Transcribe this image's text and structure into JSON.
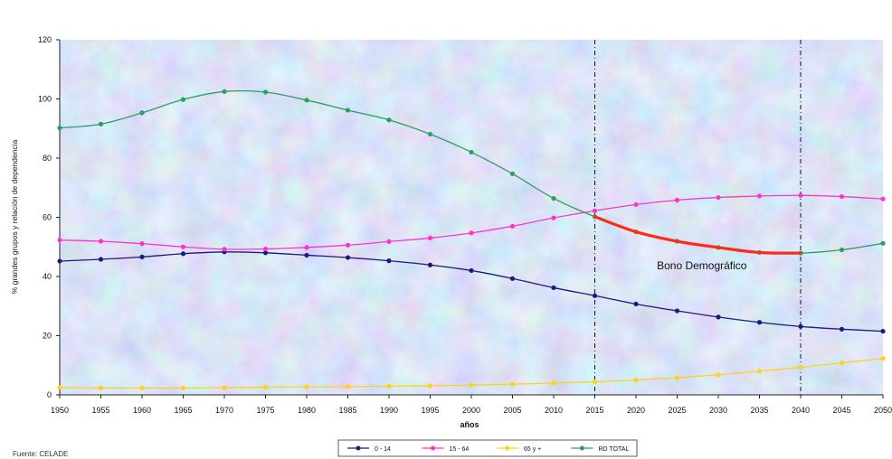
{
  "chart_data": {
    "type": "line",
    "title": "",
    "xlabel": "años",
    "ylabel": "% grandes grupos y relación de dependencia",
    "ylim": [
      0,
      120
    ],
    "yticks": [
      0,
      20,
      40,
      60,
      80,
      100,
      120
    ],
    "x": [
      1950,
      1955,
      1960,
      1965,
      1970,
      1975,
      1980,
      1985,
      1990,
      1995,
      2000,
      2005,
      2010,
      2015,
      2020,
      2025,
      2030,
      2035,
      2040,
      2045,
      2050
    ],
    "x_tick_labels": [
      "1950",
      "1955",
      "1960",
      "1965",
      "1970",
      "1975",
      "1980",
      "1985",
      "1990",
      "1995",
      "2000",
      "2005",
      "2010",
      "2015",
      "2020",
      "2025",
      "2030",
      "2035",
      "2040",
      "2045",
      "2050"
    ],
    "series": [
      {
        "name": "0 - 14",
        "color": "#1a1a80",
        "values": [
          45.2,
          45.8,
          46.6,
          47.7,
          48.3,
          48.0,
          47.2,
          46.4,
          45.3,
          43.9,
          42.0,
          39.3,
          36.2,
          33.5,
          30.7,
          28.4,
          26.3,
          24.5,
          23.1,
          22.2,
          21.5
        ]
      },
      {
        "name": "15 - 64",
        "color": "#ff33cc",
        "values": [
          52.3,
          51.9,
          51.1,
          50.0,
          49.2,
          49.3,
          49.8,
          50.6,
          51.8,
          53.0,
          54.7,
          57.0,
          59.8,
          62.2,
          64.3,
          65.8,
          66.7,
          67.2,
          67.4,
          67.0,
          66.2
        ]
      },
      {
        "name": "65 y +",
        "color": "#ffd21a",
        "values": [
          2.5,
          2.3,
          2.3,
          2.3,
          2.4,
          2.6,
          2.7,
          2.8,
          2.9,
          3.1,
          3.3,
          3.6,
          4.0,
          4.4,
          5.0,
          5.8,
          6.8,
          8.0,
          9.3,
          10.8,
          12.3
        ]
      },
      {
        "name": "RD TOTAL",
        "color": "#2e9e5e",
        "values": [
          90.2,
          91.5,
          95.3,
          99.8,
          102.5,
          102.3,
          99.6,
          96.2,
          92.9,
          88.1,
          82.0,
          74.7,
          66.4,
          60.2,
          55.1,
          51.9,
          49.8,
          48.1,
          47.9,
          49.0,
          51.2
        ]
      }
    ],
    "highlight": {
      "label": "Bono Demográfico",
      "color": "#ff2a1a",
      "series": "RD TOTAL",
      "from": 2015,
      "to": 2040
    },
    "vlines": [
      2015,
      2040
    ],
    "legend_position": "bottom",
    "grid": false
  },
  "source_text": "Fuente: CELADE"
}
